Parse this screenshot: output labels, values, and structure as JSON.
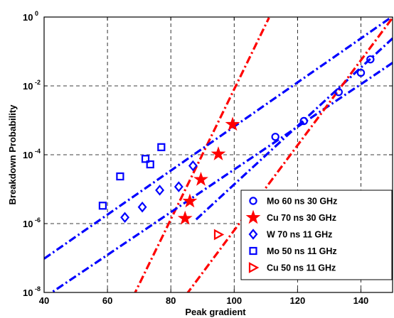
{
  "chart_data": {
    "type": "scatter",
    "xlabel": "Peak gradient",
    "ylabel": "Breakdown Probability",
    "xlim": [
      40,
      150
    ],
    "ylim_log10": [
      -8,
      0
    ],
    "yscale": "log",
    "grid": true,
    "legend_position": "bottom-right",
    "x_ticks": [
      {
        "value": 40,
        "label": "40"
      },
      {
        "value": 60,
        "label": "60"
      },
      {
        "value": 80,
        "label": "80"
      },
      {
        "value": 100,
        "label": "100"
      },
      {
        "value": 120,
        "label": "120"
      },
      {
        "value": 140,
        "label": "140"
      }
    ],
    "y_ticks": [
      {
        "exp": 0,
        "base": "10",
        "sup": "0"
      },
      {
        "exp": -2,
        "base": "10",
        "sup": "-2"
      },
      {
        "exp": -4,
        "base": "10",
        "sup": "-4"
      },
      {
        "exp": -6,
        "base": "10",
        "sup": "-6"
      },
      {
        "exp": -8,
        "base": "10",
        "sup": "-8"
      }
    ],
    "series": [
      {
        "name": "Mo 60 ns 30 GHz",
        "color": "#0000ff",
        "marker": "circle",
        "points": [
          [
            113,
            -3.48
          ],
          [
            122,
            -3.02
          ],
          [
            133,
            -2.18
          ],
          [
            140,
            -1.62
          ],
          [
            143,
            -1.23
          ]
        ],
        "fit": [
          [
            88,
            -5.88
          ],
          [
            150,
            -0.62
          ]
        ]
      },
      {
        "name": "Cu 70 ns 30 GHz",
        "color": "#ff0000",
        "marker": "star",
        "points": [
          [
            84.5,
            -5.85
          ],
          [
            86,
            -5.35
          ],
          [
            89.5,
            -4.72
          ],
          [
            95,
            -3.98
          ],
          [
            99.5,
            -3.12
          ]
        ],
        "fit": [
          [
            66,
            -8.52
          ],
          [
            111,
            -0.02
          ]
        ]
      },
      {
        "name": "W 70 ns 11 GHz",
        "color": "#0000ff",
        "marker": "diamond",
        "points": [
          [
            65.5,
            -5.82
          ],
          [
            71,
            -5.52
          ],
          [
            76.5,
            -5.03
          ],
          [
            82.5,
            -4.93
          ],
          [
            87,
            -4.32
          ]
        ],
        "fit": [
          [
            40,
            -8.15
          ],
          [
            150,
            -1.33
          ]
        ]
      },
      {
        "name": "Mo 50 ns 11 GHz",
        "color": "#0000ff",
        "marker": "square",
        "points": [
          [
            58.5,
            -5.48
          ],
          [
            64,
            -4.63
          ],
          [
            72,
            -4.12
          ],
          [
            73.5,
            -4.28
          ],
          [
            77,
            -3.78
          ]
        ],
        "fit": [
          [
            40,
            -7.02
          ],
          [
            150,
            0.02
          ]
        ]
      },
      {
        "name": "Cu 50 ns 11 GHz",
        "color": "#ff0000",
        "marker": "triangle-right",
        "points": [
          [
            95,
            -6.32
          ]
        ],
        "fit": [
          [
            82,
            -8.42
          ],
          [
            150,
            -0.02
          ]
        ]
      }
    ]
  }
}
